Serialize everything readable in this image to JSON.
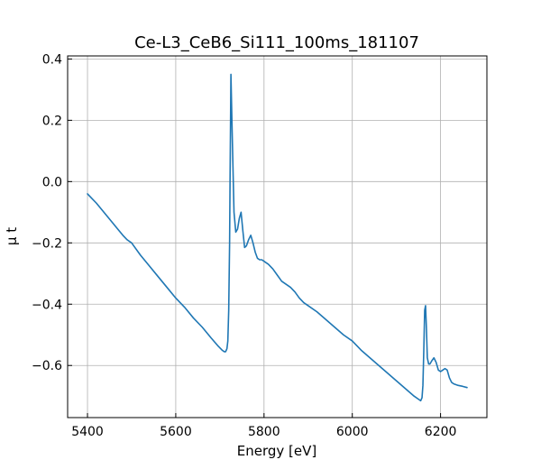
{
  "chart_data": {
    "type": "line",
    "title": "Ce-L3_CeB6_Si111_100ms_181107",
    "xlabel": "Energy [eV]",
    "ylabel": "μ t",
    "xlim": [
      5355,
      6305
    ],
    "ylim": [
      -0.77,
      0.41
    ],
    "xticks": [
      5400,
      5600,
      5800,
      6000,
      6200
    ],
    "xtick_labels": [
      "5400",
      "5600",
      "5800",
      "6000",
      "6200"
    ],
    "yticks": [
      -0.6,
      -0.4,
      -0.2,
      0.0,
      0.2,
      0.4
    ],
    "ytick_labels": [
      "−0.6",
      "−0.4",
      "−0.2",
      "0.0",
      "0.2",
      "0.4"
    ],
    "grid": true,
    "series_color": "#1f77b4",
    "series": [
      {
        "x": [
          5400,
          5410,
          5420,
          5440,
          5460,
          5480,
          5490,
          5500,
          5520,
          5540,
          5560,
          5580,
          5600,
          5620,
          5640,
          5660,
          5680,
          5695,
          5705,
          5710,
          5713,
          5716,
          5718,
          5720,
          5722,
          5723,
          5725,
          5728,
          5732,
          5736,
          5740,
          5744,
          5748,
          5752,
          5756,
          5760,
          5765,
          5770,
          5775,
          5780,
          5785,
          5790,
          5795,
          5800,
          5810,
          5820,
          5830,
          5840,
          5850,
          5860,
          5870,
          5880,
          5890,
          5900,
          5920,
          5940,
          5960,
          5980,
          6000,
          6020,
          6040,
          6060,
          6080,
          6100,
          6120,
          6140,
          6150,
          6155,
          6158,
          6160,
          6162,
          6164,
          6166,
          6168,
          6170,
          6173,
          6176,
          6180,
          6185,
          6190,
          6195,
          6200,
          6205,
          6210,
          6215,
          6220,
          6225,
          6230,
          6240,
          6250,
          6260
        ],
        "y": [
          -0.04,
          -0.055,
          -0.07,
          -0.105,
          -0.14,
          -0.175,
          -0.19,
          -0.2,
          -0.24,
          -0.275,
          -0.31,
          -0.345,
          -0.38,
          -0.41,
          -0.445,
          -0.475,
          -0.51,
          -0.535,
          -0.55,
          -0.555,
          -0.555,
          -0.545,
          -0.52,
          -0.42,
          -0.2,
          0.0,
          0.35,
          0.15,
          -0.1,
          -0.165,
          -0.155,
          -0.12,
          -0.1,
          -0.16,
          -0.215,
          -0.21,
          -0.19,
          -0.175,
          -0.2,
          -0.23,
          -0.25,
          -0.255,
          -0.255,
          -0.26,
          -0.27,
          -0.285,
          -0.305,
          -0.325,
          -0.335,
          -0.345,
          -0.36,
          -0.38,
          -0.395,
          -0.405,
          -0.425,
          -0.45,
          -0.475,
          -0.5,
          -0.52,
          -0.55,
          -0.575,
          -0.6,
          -0.625,
          -0.65,
          -0.675,
          -0.7,
          -0.71,
          -0.715,
          -0.705,
          -0.665,
          -0.55,
          -0.42,
          -0.405,
          -0.48,
          -0.575,
          -0.595,
          -0.595,
          -0.585,
          -0.575,
          -0.59,
          -0.615,
          -0.62,
          -0.615,
          -0.61,
          -0.615,
          -0.64,
          -0.655,
          -0.66,
          -0.665,
          -0.668,
          -0.672
        ]
      }
    ]
  }
}
